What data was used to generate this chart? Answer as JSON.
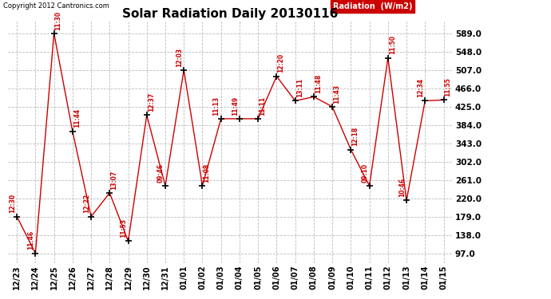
{
  "title": "Solar Radiation Daily 20130116",
  "copyright": "Copyright 2012 Cantronics.com",
  "legend_label": "Radiation  (W/m2)",
  "x_labels": [
    "12/23",
    "12/24",
    "12/25",
    "12/26",
    "12/27",
    "12/28",
    "12/29",
    "12/30",
    "12/31",
    "01/01",
    "01/02",
    "01/03",
    "01/04",
    "01/05",
    "01/06",
    "01/07",
    "01/08",
    "01/09",
    "01/10",
    "01/11",
    "01/12",
    "01/13",
    "01/14",
    "01/15"
  ],
  "y_values": [
    179.0,
    97.0,
    589.0,
    370.0,
    179.0,
    232.0,
    124.0,
    406.0,
    248.0,
    507.0,
    248.0,
    398.0,
    398.0,
    398.0,
    493.0,
    438.0,
    447.0,
    425.0,
    329.0,
    248.0,
    534.0,
    215.0,
    438.0,
    440.0
  ],
  "point_labels": [
    "12:30",
    "11:46",
    "11:30",
    "11:44",
    "12:22",
    "13:07",
    "11:53",
    "12:37",
    "09:46",
    "12:03",
    "11:08",
    "11:13",
    "11:49",
    "11:11",
    "12:20",
    "13:11",
    "11:48",
    "11:43",
    "12:18",
    "09:10",
    "11:50",
    "10:46",
    "12:34",
    "11:55"
  ],
  "label_side": [
    "left",
    "left",
    "right",
    "right",
    "left",
    "right",
    "left",
    "right",
    "left",
    "left",
    "right",
    "left",
    "left",
    "right",
    "right",
    "right",
    "right",
    "right",
    "right",
    "left",
    "right",
    "left",
    "left",
    "right"
  ],
  "y_ticks": [
    97.0,
    138.0,
    179.0,
    220.0,
    261.0,
    302.0,
    343.0,
    384.0,
    425.0,
    466.0,
    507.0,
    548.0,
    589.0
  ],
  "line_color": "#cc0000",
  "marker_color": "#000000",
  "bg_color": "#ffffff",
  "grid_color": "#bbbbbb",
  "label_color": "#cc0000",
  "title_color": "#000000",
  "legend_bg": "#cc0000",
  "legend_text_color": "#ffffff",
  "ylim_min": 75,
  "ylim_max": 615
}
